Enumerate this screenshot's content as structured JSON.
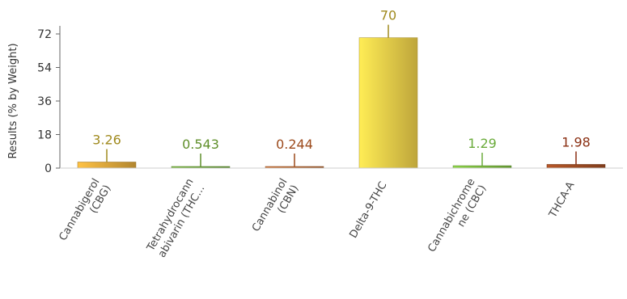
{
  "chart_data": {
    "type": "bar",
    "ylabel": "Results (% by Weight)",
    "ylim": [
      0,
      72
    ],
    "yticks": [
      0,
      18,
      36,
      54,
      72
    ],
    "grid": false,
    "categories": [
      [
        "Cannabigerol",
        "(CBG)"
      ],
      [
        "Tetrahydrocann",
        "abivarin (THC..."
      ],
      [
        "Cannabinol",
        "(CBN)"
      ],
      [
        "Delta-9-THC"
      ],
      [
        "Cannabichrome",
        "ne (CBC)"
      ],
      [
        "THCA-A"
      ]
    ],
    "values": [
      3.26,
      0.543,
      0.244,
      70,
      1.29,
      1.98
    ],
    "value_labels": [
      "3.26",
      "0.543",
      "0.244",
      "70",
      "1.29",
      "1.98"
    ],
    "bar_colors": [
      "#d9a43a",
      "#6aa336",
      "#b5652e",
      "#e8c948",
      "#79b83c",
      "#9b4a22"
    ],
    "label_colors": [
      "#a08a1e",
      "#5f8f2a",
      "#9c4a1c",
      "#a08a1e",
      "#6aab3a",
      "#8a2f12"
    ]
  }
}
